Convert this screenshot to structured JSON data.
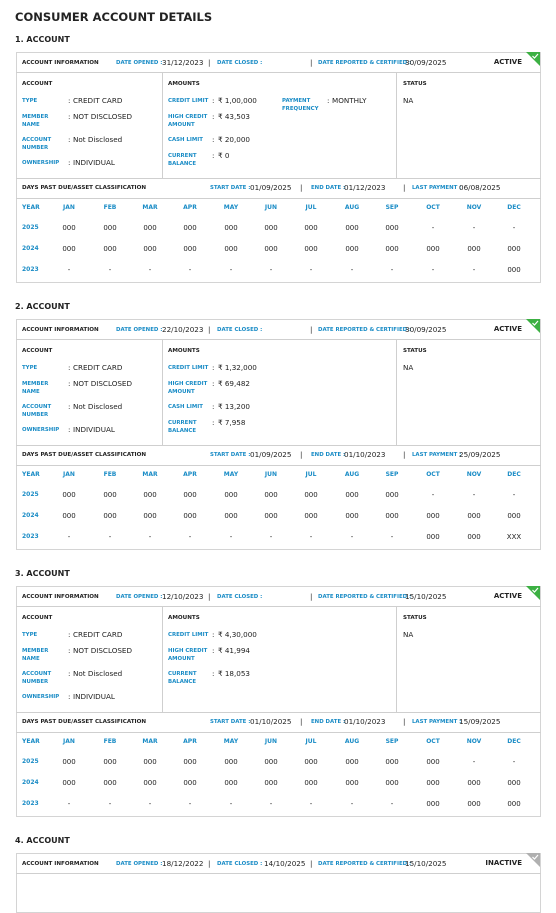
{
  "title": "CONSUMER ACCOUNT DETAILS",
  "labels": {
    "account_information": "ACCOUNT INFORMATION",
    "date_opened": "DATE OPENED :",
    "date_closed": "DATE CLOSED :",
    "date_reported": "DATE REPORTED & CERTIFIED :",
    "account": "ACCOUNT",
    "amounts": "AMOUNTS",
    "status": "STATUS",
    "dpd": "DAYS PAST DUE/ASSET CLASSIFICATION",
    "start_date": "START DATE :",
    "end_date": "END DATE :",
    "last_payment": "LAST PAYMENT :",
    "year": "YEAR",
    "months": [
      "JAN",
      "FEB",
      "MAR",
      "APR",
      "MAY",
      "JUN",
      "JUL",
      "AUG",
      "SEP",
      "OCT",
      "NOV",
      "DEC"
    ],
    "separator": ":",
    "divider": "|"
  },
  "accounts": [
    {
      "heading": "1. ACCOUNT",
      "date_opened": "31/12/2023",
      "date_closed": null,
      "date_reported": "30/09/2025",
      "status": "ACTIVE",
      "badge_color": "#3cb043",
      "account_fields": [
        {
          "label": "TYPE",
          "value": "CREDIT CARD"
        },
        {
          "label": "MEMBER NAME",
          "value": "NOT DISCLOSED"
        },
        {
          "label": "ACCOUNT NUMBER",
          "value": "Not Disclosed"
        },
        {
          "label": "OWNERSHIP",
          "value": "INDIVIDUAL"
        }
      ],
      "amounts": [
        {
          "label": "CREDIT LIMIT",
          "value": "₹ 1,00,000"
        },
        {
          "label": "HIGH CREDIT AMOUNT",
          "value": "₹ 43,503"
        },
        {
          "label": "CASH LIMIT",
          "value": "₹ 20,000"
        },
        {
          "label": "CURRENT BALANCE",
          "value": "₹ 0"
        }
      ],
      "payment_frequency": {
        "label": "PAYMENT FREQUENCY",
        "value": "MONTHLY"
      },
      "account_status": "NA",
      "start_date": "01/09/2025",
      "end_date": "01/12/2023",
      "last_payment": "06/08/2025",
      "history": [
        {
          "year": "2025",
          "values": [
            "000",
            "000",
            "000",
            "000",
            "000",
            "000",
            "000",
            "000",
            "000",
            "-",
            "-",
            "-"
          ]
        },
        {
          "year": "2024",
          "values": [
            "000",
            "000",
            "000",
            "000",
            "000",
            "000",
            "000",
            "000",
            "000",
            "000",
            "000",
            "000"
          ]
        },
        {
          "year": "2023",
          "values": [
            "-",
            "-",
            "-",
            "-",
            "-",
            "-",
            "-",
            "-",
            "-",
            "-",
            "-",
            "000"
          ]
        }
      ]
    },
    {
      "heading": "2. ACCOUNT",
      "date_opened": "22/10/2023",
      "date_closed": null,
      "date_reported": "30/09/2025",
      "status": "ACTIVE",
      "badge_color": "#3cb043",
      "account_fields": [
        {
          "label": "TYPE",
          "value": "CREDIT CARD"
        },
        {
          "label": "MEMBER NAME",
          "value": "NOT DISCLOSED"
        },
        {
          "label": "ACCOUNT NUMBER",
          "value": "Not Disclosed"
        },
        {
          "label": "OWNERSHIP",
          "value": "INDIVIDUAL"
        }
      ],
      "amounts": [
        {
          "label": "CREDIT LIMIT",
          "value": "₹ 1,32,000"
        },
        {
          "label": "HIGH CREDIT AMOUNT",
          "value": "₹ 69,482"
        },
        {
          "label": "CASH LIMIT",
          "value": "₹ 13,200"
        },
        {
          "label": "CURRENT BALANCE",
          "value": "₹ 7,958"
        }
      ],
      "account_status": "NA",
      "start_date": "01/09/2025",
      "end_date": "01/10/2023",
      "last_payment": "25/09/2025",
      "history": [
        {
          "year": "2025",
          "values": [
            "000",
            "000",
            "000",
            "000",
            "000",
            "000",
            "000",
            "000",
            "000",
            "-",
            "-",
            "-"
          ]
        },
        {
          "year": "2024",
          "values": [
            "000",
            "000",
            "000",
            "000",
            "000",
            "000",
            "000",
            "000",
            "000",
            "000",
            "000",
            "000"
          ]
        },
        {
          "year": "2023",
          "values": [
            "-",
            "-",
            "-",
            "-",
            "-",
            "-",
            "-",
            "-",
            "-",
            "000",
            "000",
            "XXX"
          ]
        }
      ]
    },
    {
      "heading": "3. ACCOUNT",
      "date_opened": "12/10/2023",
      "date_closed": null,
      "date_reported": "15/10/2025",
      "status": "ACTIVE",
      "badge_color": "#3cb043",
      "account_fields": [
        {
          "label": "TYPE",
          "value": "CREDIT CARD"
        },
        {
          "label": "MEMBER NAME",
          "value": "NOT DISCLOSED"
        },
        {
          "label": "ACCOUNT NUMBER",
          "value": "Not Disclosed"
        },
        {
          "label": "OWNERSHIP",
          "value": "INDIVIDUAL"
        }
      ],
      "amounts": [
        {
          "label": "CREDIT LIMIT",
          "value": "₹ 4,30,000"
        },
        {
          "label": "HIGH CREDIT AMOUNT",
          "value": "₹ 41,994"
        },
        {
          "label": "CURRENT BALANCE",
          "value": "₹ 18,053"
        }
      ],
      "account_status": "NA",
      "start_date": "01/10/2025",
      "end_date": "01/10/2023",
      "last_payment": "15/09/2025",
      "history": [
        {
          "year": "2025",
          "values": [
            "000",
            "000",
            "000",
            "000",
            "000",
            "000",
            "000",
            "000",
            "000",
            "000",
            "-",
            "-"
          ]
        },
        {
          "year": "2024",
          "values": [
            "000",
            "000",
            "000",
            "000",
            "000",
            "000",
            "000",
            "000",
            "000",
            "000",
            "000",
            "000"
          ]
        },
        {
          "year": "2023",
          "values": [
            "-",
            "-",
            "-",
            "-",
            "-",
            "-",
            "-",
            "-",
            "-",
            "000",
            "000",
            "000"
          ]
        }
      ]
    },
    {
      "heading": "4. ACCOUNT",
      "date_opened": "18/12/2022",
      "date_closed": "14/10/2025",
      "date_reported": "15/10/2025",
      "status": "INACTIVE",
      "badge_color": "#b0b0b0"
    }
  ]
}
